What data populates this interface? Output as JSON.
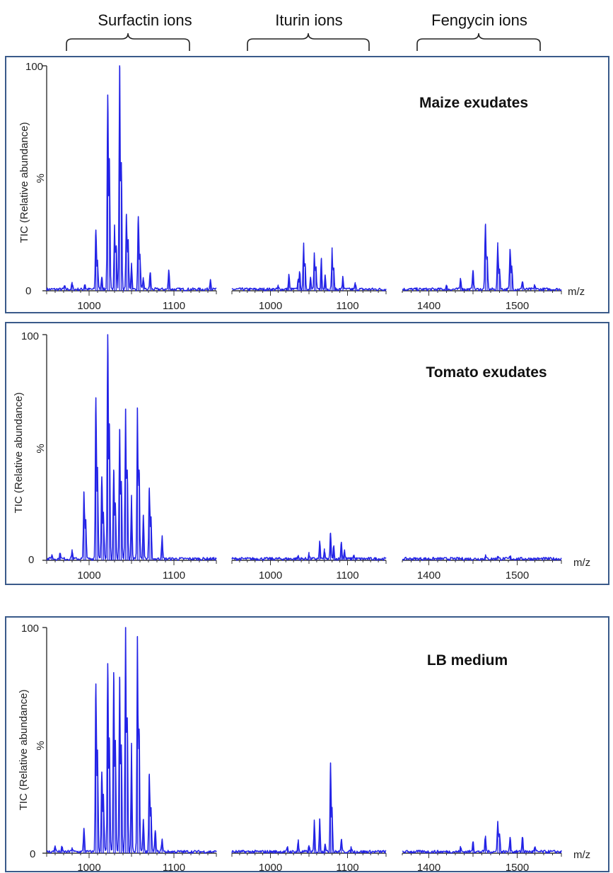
{
  "colors": {
    "trace": "#2323e6",
    "frame": "#3a5a8a",
    "axis": "#333333"
  },
  "headers": [
    {
      "label": "Surfactin ions"
    },
    {
      "label": "Iturin ions"
    },
    {
      "label": "Fengycin ions"
    }
  ],
  "chart_data": [
    {
      "type": "line",
      "title": "Maize exudates",
      "ylabel": "TIC (Relative abundance)",
      "ymid_label": "%",
      "xunit": "m/z",
      "yticks": [
        "100",
        "0"
      ],
      "ylim": [
        0,
        100
      ],
      "subplots": [
        {
          "xlim": [
            950,
            1150
          ],
          "xticks": [
            1000,
            1100
          ],
          "peaks": [
            [
              971,
              1.5
            ],
            [
              980,
              3
            ],
            [
              995,
              2.5
            ],
            [
              1008,
              27
            ],
            [
              1010,
              13
            ],
            [
              1015,
              6
            ],
            [
              1022,
              87
            ],
            [
              1024,
              58
            ],
            [
              1030,
              29
            ],
            [
              1032,
              20
            ],
            [
              1036,
              100
            ],
            [
              1038,
              57
            ],
            [
              1044,
              34
            ],
            [
              1046,
              22
            ],
            [
              1050,
              12
            ],
            [
              1058,
              33
            ],
            [
              1060,
              16
            ],
            [
              1064,
              5
            ],
            [
              1072,
              8
            ],
            [
              1094,
              9
            ],
            [
              1143,
              5
            ]
          ]
        },
        {
          "xlim": [
            950,
            1150
          ],
          "xticks": [
            1000,
            1100
          ],
          "peaks": [
            [
              1010,
              1.5
            ],
            [
              1024,
              7
            ],
            [
              1036,
              5
            ],
            [
              1038,
              8
            ],
            [
              1043,
              20
            ],
            [
              1045,
              12
            ],
            [
              1052,
              6
            ],
            [
              1057,
              16
            ],
            [
              1059,
              10
            ],
            [
              1066,
              14
            ],
            [
              1071,
              7
            ],
            [
              1080,
              18
            ],
            [
              1082,
              10
            ],
            [
              1094,
              6
            ],
            [
              1110,
              3
            ]
          ]
        },
        {
          "xlim": [
            1370,
            1550
          ],
          "xticks": [
            1400,
            1500
          ],
          "peaks": [
            [
              1420,
              1.5
            ],
            [
              1436,
              5
            ],
            [
              1450,
              9
            ],
            [
              1464,
              29
            ],
            [
              1466,
              15
            ],
            [
              1478,
              20
            ],
            [
              1480,
              9
            ],
            [
              1492,
              18
            ],
            [
              1494,
              10
            ],
            [
              1506,
              4
            ],
            [
              1520,
              2
            ]
          ]
        }
      ]
    },
    {
      "type": "line",
      "title": "Tomato exudates",
      "ylabel": "TIC (Relative abundance)",
      "ymid_label": "%",
      "xunit": "m/z",
      "yticks": [
        "100",
        "0"
      ],
      "ylim": [
        0,
        100
      ],
      "subplots": [
        {
          "xlim": [
            950,
            1150
          ],
          "xticks": [
            1000,
            1100
          ],
          "peaks": [
            [
              956,
              2
            ],
            [
              966,
              3
            ],
            [
              980,
              4
            ],
            [
              994,
              30
            ],
            [
              996,
              18
            ],
            [
              1008,
              72
            ],
            [
              1010,
              40
            ],
            [
              1015,
              37
            ],
            [
              1017,
              20
            ],
            [
              1022,
              100
            ],
            [
              1024,
              60
            ],
            [
              1029,
              40
            ],
            [
              1031,
              25
            ],
            [
              1036,
              58
            ],
            [
              1038,
              35
            ],
            [
              1043,
              67
            ],
            [
              1045,
              40
            ],
            [
              1050,
              28
            ],
            [
              1057,
              67
            ],
            [
              1059,
              40
            ],
            [
              1064,
              20
            ],
            [
              1071,
              32
            ],
            [
              1073,
              18
            ],
            [
              1086,
              10
            ]
          ]
        },
        {
          "xlim": [
            950,
            1150
          ],
          "xticks": [
            1000,
            1100
          ],
          "peaks": [
            [
              1036,
              1.5
            ],
            [
              1050,
              2.5
            ],
            [
              1064,
              8
            ],
            [
              1070,
              4
            ],
            [
              1078,
              12
            ],
            [
              1082,
              6
            ],
            [
              1092,
              8
            ],
            [
              1096,
              4
            ],
            [
              1108,
              2
            ]
          ]
        },
        {
          "xlim": [
            1370,
            1550
          ],
          "xticks": [
            1400,
            1500
          ],
          "peaks": [
            [
              1464,
              1.5
            ],
            [
              1478,
              1.5
            ],
            [
              1492,
              1.2
            ]
          ]
        }
      ]
    },
    {
      "type": "line",
      "title": "LB medium",
      "ylabel": "TIC (Relative abundance)",
      "ymid_label": "%",
      "xunit": "m/z",
      "yticks": [
        "100",
        "0"
      ],
      "ylim": [
        0,
        100
      ],
      "subplots": [
        {
          "xlim": [
            950,
            1150
          ],
          "xticks": [
            1000,
            1100
          ],
          "peaks": [
            [
              960,
              3
            ],
            [
              968,
              2
            ],
            [
              980,
              2
            ],
            [
              994,
              11
            ],
            [
              1008,
              75
            ],
            [
              1010,
              45
            ],
            [
              1015,
              36
            ],
            [
              1017,
              25
            ],
            [
              1022,
              84
            ],
            [
              1024,
              50
            ],
            [
              1029,
              80
            ],
            [
              1031,
              50
            ],
            [
              1036,
              78
            ],
            [
              1038,
              48
            ],
            [
              1043,
              100
            ],
            [
              1045,
              60
            ],
            [
              1050,
              48
            ],
            [
              1057,
              96
            ],
            [
              1059,
              55
            ],
            [
              1064,
              15
            ],
            [
              1071,
              35
            ],
            [
              1073,
              20
            ],
            [
              1078,
              10
            ],
            [
              1086,
              6
            ]
          ]
        },
        {
          "xlim": [
            950,
            1150
          ],
          "xticks": [
            1000,
            1100
          ],
          "peaks": [
            [
              1022,
              2
            ],
            [
              1036,
              5
            ],
            [
              1050,
              3
            ],
            [
              1057,
              14
            ],
            [
              1064,
              15
            ],
            [
              1071,
              4
            ],
            [
              1078,
              40
            ],
            [
              1080,
              20
            ],
            [
              1092,
              6
            ],
            [
              1105,
              2
            ]
          ]
        },
        {
          "xlim": [
            1370,
            1550
          ],
          "xticks": [
            1400,
            1500
          ],
          "peaks": [
            [
              1436,
              2
            ],
            [
              1450,
              5
            ],
            [
              1464,
              7
            ],
            [
              1478,
              14
            ],
            [
              1480,
              8
            ],
            [
              1492,
              7
            ],
            [
              1506,
              7
            ],
            [
              1520,
              2
            ]
          ]
        }
      ]
    }
  ]
}
